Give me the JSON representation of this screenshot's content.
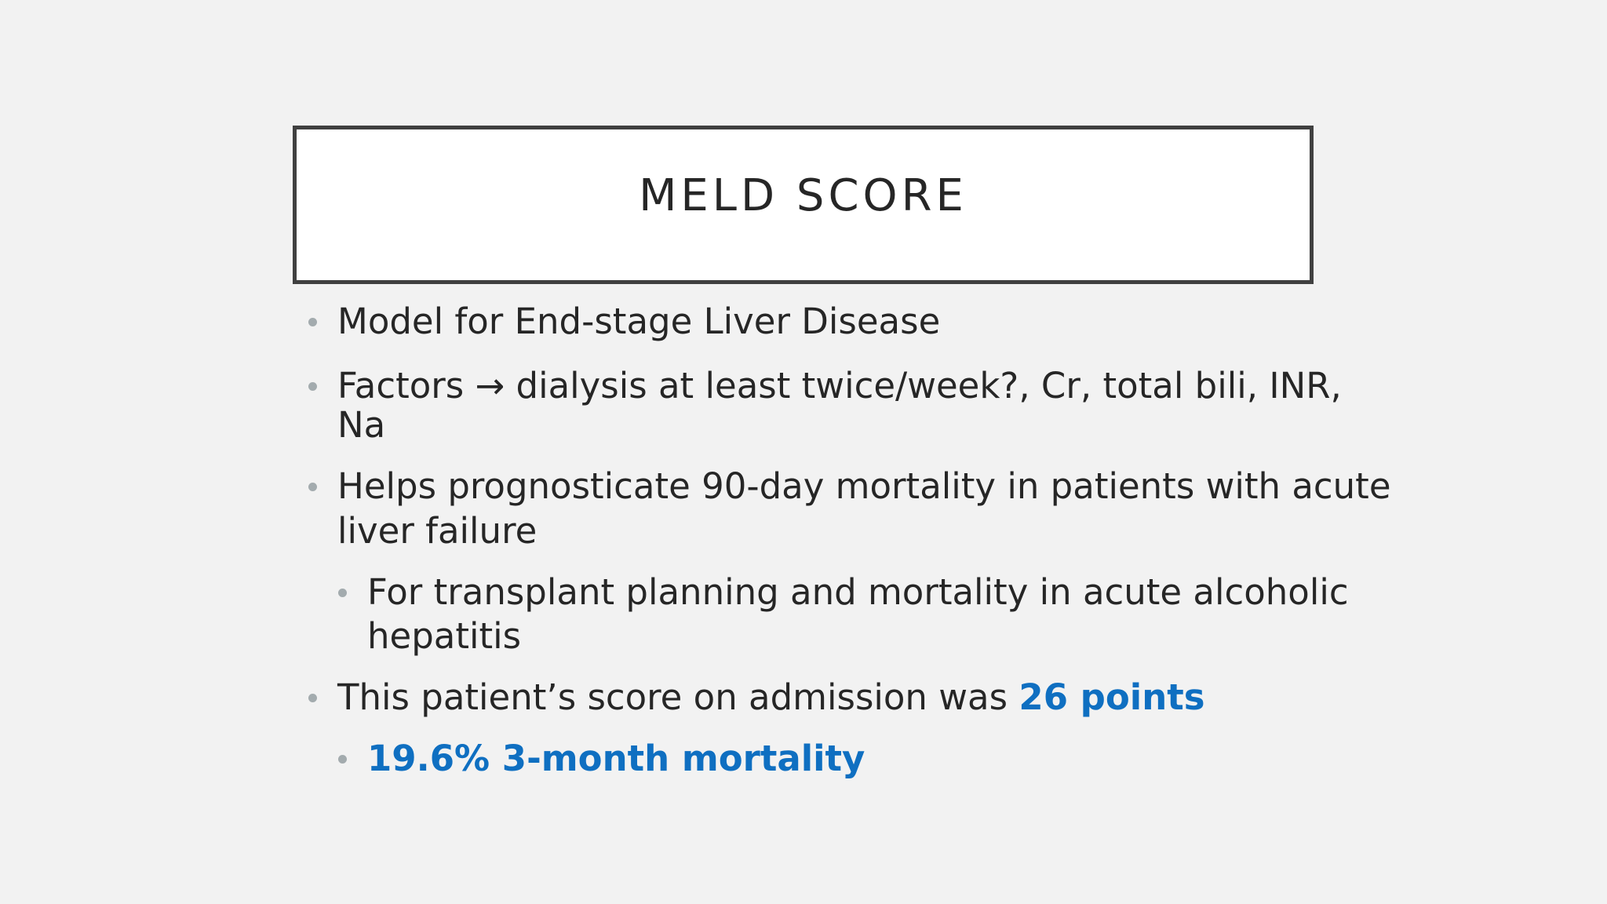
{
  "header": {
    "title": "MELD SCORE"
  },
  "bullets": [
    {
      "lines": [
        "Model for End-stage Liver Disease"
      ]
    },
    {
      "lines": [
        "Factors → dialysis at least twice/week?, Cr, total bili, INR,",
        "Na"
      ]
    },
    {
      "lines": [
        "Helps prognosticate 90-day mortality in patients with acute",
        "liver failure"
      ],
      "sub": [
        {
          "lines": [
            "For transplant planning and mortality in acute alcoholic",
            "hepatitis"
          ]
        }
      ]
    },
    {
      "text": "This patient’s score on admission was ",
      "emphasis": "26 points",
      "sub": [
        {
          "emphasis": "19.6% 3-month mortality"
        }
      ]
    }
  ]
}
